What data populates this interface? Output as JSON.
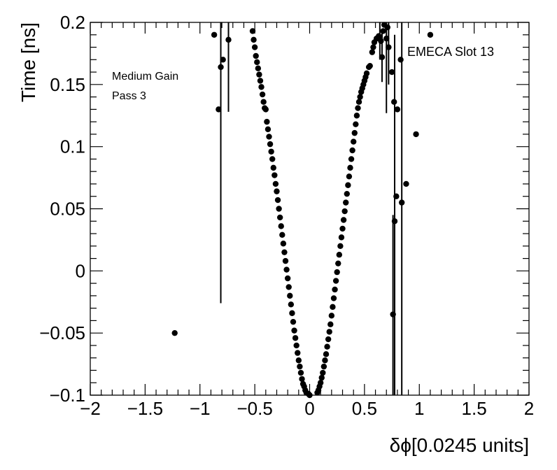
{
  "chart_data": {
    "type": "scatter",
    "title": "",
    "xlabel": "δϕ[0.0245 units]",
    "ylabel": "Time [ns]",
    "xlim": [
      -2,
      2
    ],
    "ylim": [
      -0.1,
      0.2
    ],
    "grid": false,
    "x_ticks": [
      -2,
      -1.5,
      -1,
      -0.5,
      0,
      0.5,
      1,
      1.5,
      2
    ],
    "x_tick_labels": [
      "−2",
      "−1.5",
      "−1",
      "−0.5",
      "0",
      "0.5",
      "1",
      "1.5",
      "2"
    ],
    "y_ticks": [
      -0.1,
      -0.05,
      0,
      0.05,
      0.1,
      0.15,
      0.2
    ],
    "y_tick_labels": [
      "−0.1",
      "−0.05",
      "0",
      "0.05",
      "0.1",
      "0.15",
      "0.2"
    ],
    "annotations": {
      "gain": "Medium Gain",
      "pass": "Pass 3",
      "slot": "EMECA Slot 13"
    },
    "series": [
      {
        "points": [
          {
            "x": -1.23,
            "y": -0.05
          },
          {
            "x": -0.87,
            "y": 0.19
          },
          {
            "x": -0.83,
            "y": 0.13
          },
          {
            "x": -0.81,
            "y": 0.164,
            "err": 0.19
          },
          {
            "x": -0.79,
            "y": 0.17
          },
          {
            "x": -0.74,
            "y": 0.186,
            "err": 0.058
          },
          {
            "x": -0.52,
            "y": 0.193
          },
          {
            "x": -0.51,
            "y": 0.186
          },
          {
            "x": -0.5,
            "y": 0.18
          },
          {
            "x": -0.49,
            "y": 0.173
          },
          {
            "x": -0.48,
            "y": 0.168
          },
          {
            "x": -0.47,
            "y": 0.163
          },
          {
            "x": -0.46,
            "y": 0.158
          },
          {
            "x": -0.45,
            "y": 0.153
          },
          {
            "x": -0.44,
            "y": 0.148
          },
          {
            "x": -0.43,
            "y": 0.142
          },
          {
            "x": -0.42,
            "y": 0.136
          },
          {
            "x": -0.41,
            "y": 0.131
          },
          {
            "x": -0.4,
            "y": 0.13
          },
          {
            "x": -0.39,
            "y": 0.12
          },
          {
            "x": -0.38,
            "y": 0.114
          },
          {
            "x": -0.37,
            "y": 0.108
          },
          {
            "x": -0.36,
            "y": 0.102
          },
          {
            "x": -0.35,
            "y": 0.096
          },
          {
            "x": -0.34,
            "y": 0.09
          },
          {
            "x": -0.33,
            "y": 0.083
          },
          {
            "x": -0.32,
            "y": 0.077
          },
          {
            "x": -0.31,
            "y": 0.07
          },
          {
            "x": -0.3,
            "y": 0.064
          },
          {
            "x": -0.29,
            "y": 0.057
          },
          {
            "x": -0.28,
            "y": 0.05
          },
          {
            "x": -0.27,
            "y": 0.043
          },
          {
            "x": -0.26,
            "y": 0.036
          },
          {
            "x": -0.25,
            "y": 0.029
          },
          {
            "x": -0.24,
            "y": 0.022
          },
          {
            "x": -0.23,
            "y": 0.015
          },
          {
            "x": -0.22,
            "y": 0.008
          },
          {
            "x": -0.21,
            "y": 0.001
          },
          {
            "x": -0.2,
            "y": -0.006
          },
          {
            "x": -0.19,
            "y": -0.013
          },
          {
            "x": -0.18,
            "y": -0.02
          },
          {
            "x": -0.17,
            "y": -0.027
          },
          {
            "x": -0.16,
            "y": -0.034
          },
          {
            "x": -0.15,
            "y": -0.041
          },
          {
            "x": -0.14,
            "y": -0.048
          },
          {
            "x": -0.13,
            "y": -0.054
          },
          {
            "x": -0.12,
            "y": -0.06
          },
          {
            "x": -0.11,
            "y": -0.066
          },
          {
            "x": -0.1,
            "y": -0.072
          },
          {
            "x": -0.09,
            "y": -0.077
          },
          {
            "x": -0.08,
            "y": -0.082
          },
          {
            "x": -0.07,
            "y": -0.087
          },
          {
            "x": -0.06,
            "y": -0.091
          },
          {
            "x": -0.05,
            "y": -0.093
          },
          {
            "x": -0.04,
            "y": -0.096
          },
          {
            "x": -0.03,
            "y": -0.098
          },
          {
            "x": -0.01,
            "y": -0.099
          },
          {
            "x": 0.0,
            "y": -0.1
          },
          {
            "x": 0.07,
            "y": -0.098
          },
          {
            "x": 0.08,
            "y": -0.096
          },
          {
            "x": 0.09,
            "y": -0.093
          },
          {
            "x": 0.1,
            "y": -0.09
          },
          {
            "x": 0.11,
            "y": -0.086
          },
          {
            "x": 0.12,
            "y": -0.082
          },
          {
            "x": 0.13,
            "y": -0.077
          },
          {
            "x": 0.14,
            "y": -0.072
          },
          {
            "x": 0.15,
            "y": -0.067
          },
          {
            "x": 0.16,
            "y": -0.061
          },
          {
            "x": 0.17,
            "y": -0.055
          },
          {
            "x": 0.18,
            "y": -0.049
          },
          {
            "x": 0.19,
            "y": -0.043
          },
          {
            "x": 0.2,
            "y": -0.036
          },
          {
            "x": 0.21,
            "y": -0.029
          },
          {
            "x": 0.22,
            "y": -0.022
          },
          {
            "x": 0.23,
            "y": -0.015
          },
          {
            "x": 0.24,
            "y": -0.008
          },
          {
            "x": 0.25,
            "y": -0.001
          },
          {
            "x": 0.26,
            "y": 0.006
          },
          {
            "x": 0.27,
            "y": 0.013
          },
          {
            "x": 0.28,
            "y": 0.02
          },
          {
            "x": 0.29,
            "y": 0.027
          },
          {
            "x": 0.3,
            "y": 0.034
          },
          {
            "x": 0.31,
            "y": 0.041
          },
          {
            "x": 0.32,
            "y": 0.048
          },
          {
            "x": 0.33,
            "y": 0.055
          },
          {
            "x": 0.34,
            "y": 0.062
          },
          {
            "x": 0.35,
            "y": 0.069
          },
          {
            "x": 0.36,
            "y": 0.076
          },
          {
            "x": 0.37,
            "y": 0.083
          },
          {
            "x": 0.38,
            "y": 0.09
          },
          {
            "x": 0.39,
            "y": 0.097
          },
          {
            "x": 0.4,
            "y": 0.104
          },
          {
            "x": 0.41,
            "y": 0.111
          },
          {
            "x": 0.42,
            "y": 0.118
          },
          {
            "x": 0.43,
            "y": 0.125
          },
          {
            "x": 0.44,
            "y": 0.131
          },
          {
            "x": 0.45,
            "y": 0.136
          },
          {
            "x": 0.46,
            "y": 0.14
          },
          {
            "x": 0.47,
            "y": 0.144
          },
          {
            "x": 0.48,
            "y": 0.147
          },
          {
            "x": 0.49,
            "y": 0.15
          },
          {
            "x": 0.5,
            "y": 0.153
          },
          {
            "x": 0.51,
            "y": 0.156
          },
          {
            "x": 0.52,
            "y": 0.159
          },
          {
            "x": 0.54,
            "y": 0.164
          },
          {
            "x": 0.55,
            "y": 0.165
          },
          {
            "x": 0.57,
            "y": 0.176
          },
          {
            "x": 0.58,
            "y": 0.18
          },
          {
            "x": 0.59,
            "y": 0.184
          },
          {
            "x": 0.61,
            "y": 0.187
          },
          {
            "x": 0.63,
            "y": 0.189
          },
          {
            "x": 0.64,
            "y": 0.188,
            "err": 0.018
          },
          {
            "x": 0.65,
            "y": 0.185
          },
          {
            "x": 0.66,
            "y": 0.172,
            "err": 0.02
          },
          {
            "x": 0.67,
            "y": 0.193
          },
          {
            "x": 0.68,
            "y": 0.198
          },
          {
            "x": 0.7,
            "y": 0.187,
            "err": 0.06
          },
          {
            "x": 0.71,
            "y": 0.196
          },
          {
            "x": 0.72,
            "y": 0.18,
            "err": 0.03
          },
          {
            "x": 0.75,
            "y": 0.16
          },
          {
            "x": 0.76,
            "y": -0.035,
            "err": 0.08
          },
          {
            "x": 0.77,
            "y": 0.136
          },
          {
            "x": 0.775,
            "y": 0.04,
            "err": 0.15
          },
          {
            "x": 0.79,
            "y": 0.06
          },
          {
            "x": 0.8,
            "y": 0.13
          },
          {
            "x": 0.84,
            "y": 0.055,
            "err": 0.18
          },
          {
            "x": 0.83,
            "y": 0.17
          },
          {
            "x": 0.88,
            "y": 0.07
          },
          {
            "x": 0.97,
            "y": 0.11
          },
          {
            "x": 1.1,
            "y": 0.19
          }
        ]
      }
    ]
  }
}
